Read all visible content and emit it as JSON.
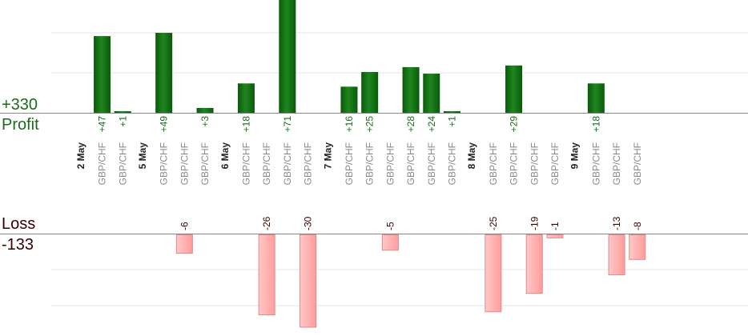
{
  "labels": {
    "profit_total": "+330",
    "profit_label": "Profit",
    "loss_label": "Loss",
    "loss_total": "-133"
  },
  "colors": {
    "profit_dark": "#0a5a0a",
    "profit_light": "#2a9a2a",
    "loss_fill": "#ffb3b3",
    "loss_stroke": "#e08a8a",
    "profit_text": "#1a6b1a",
    "loss_text": "#3a0000",
    "axis": "#888888",
    "grid": "#e6e6e6"
  },
  "chart_data": {
    "type": "bar",
    "grid": true,
    "categories": [
      {
        "day": "2 May",
        "trades": [
          {
            "pair": "GBP/CHF",
            "profit": 47
          },
          {
            "pair": "GBP/CHF",
            "profit": 1
          }
        ]
      },
      {
        "day": "5 May",
        "trades": [
          {
            "pair": "GBP/CHF",
            "profit": 49
          },
          {
            "pair": "GBP/CHF",
            "loss": -6
          },
          {
            "pair": "GBP/CHF",
            "profit": 3
          }
        ]
      },
      {
        "day": "6 May",
        "trades": [
          {
            "pair": "GBP/CHF",
            "profit": 18
          },
          {
            "pair": "GBP/CHF",
            "loss": -26
          },
          {
            "pair": "GBP/CHF",
            "profit": 71
          },
          {
            "pair": "GBP/CHF",
            "loss": -30
          }
        ]
      },
      {
        "day": "7 May",
        "trades": [
          {
            "pair": "GBP/CHF",
            "profit": 16
          },
          {
            "pair": "GBP/CHF",
            "profit": 25
          },
          {
            "pair": "GBP/CHF",
            "loss": -5
          },
          {
            "pair": "GBP/CHF",
            "profit": 28
          },
          {
            "pair": "GBP/CHF",
            "profit": 24
          },
          {
            "pair": "GBP/CHF",
            "profit": 1
          }
        ]
      },
      {
        "day": "8 May",
        "trades": [
          {
            "pair": "GBP/CHF",
            "loss": -25
          },
          {
            "pair": "GBP/CHF",
            "profit": 29
          },
          {
            "pair": "GBP/CHF",
            "loss": -19
          },
          {
            "pair": "GBP/CHF",
            "loss": -1
          }
        ]
      },
      {
        "day": "9 May",
        "trades": [
          {
            "pair": "GBP/CHF",
            "profit": 18
          },
          {
            "pair": "GBP/CHF",
            "loss": -13
          },
          {
            "pair": "GBP/CHF",
            "loss": -8
          }
        ]
      }
    ]
  }
}
